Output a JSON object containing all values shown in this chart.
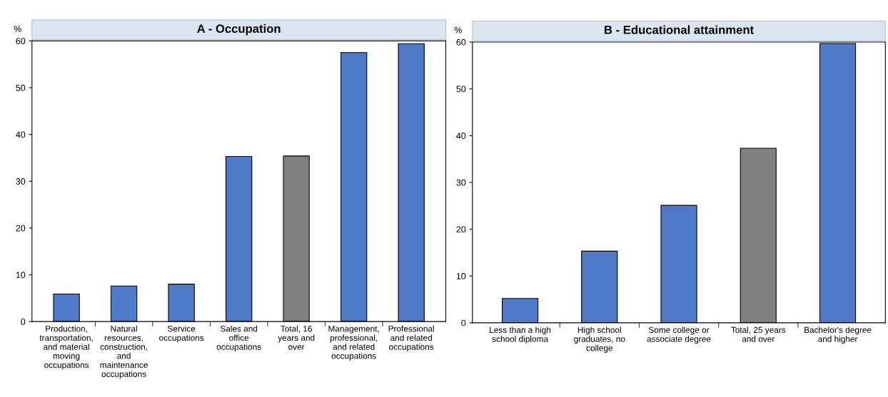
{
  "chart_data": [
    {
      "type": "bar",
      "title": "A - Occupation",
      "ylabel": "%",
      "categories": [
        "Production,\ntransportation,\nand material\nmoving\noccupations",
        "Natural\nresources,\nconstruction,\nand\nmaintenance\noccupations",
        "Service\noccupations",
        "Sales and\noffice\noccupations",
        "Total, 16\nyears and\nover",
        "Management,\nprofessional,\nand related\noccupations",
        "Professional\nand related\noccupations"
      ],
      "values": [
        5.9,
        7.6,
        8.0,
        35.3,
        35.4,
        57.5,
        59.4
      ],
      "colors": [
        "#4f7ac7",
        "#4f7ac7",
        "#4f7ac7",
        "#4f7ac7",
        "#808080",
        "#4f7ac7",
        "#4f7ac7"
      ],
      "ylim": [
        0,
        60
      ],
      "yticks": [
        0,
        10,
        20,
        30,
        40,
        50,
        60
      ],
      "grid": false,
      "legend": false
    },
    {
      "type": "bar",
      "title": "B - Educational attainment",
      "ylabel": "%",
      "categories": [
        "Less than a high\nschool diploma",
        "High school\ngraduates, no\ncollege",
        "Some college or\nassociate degree",
        "Total, 25 years\nand over",
        "Bachelor's degree\nand higher"
      ],
      "values": [
        5.2,
        15.3,
        25.1,
        37.3,
        59.7
      ],
      "colors": [
        "#4f7ac7",
        "#4f7ac7",
        "#4f7ac7",
        "#808080",
        "#4f7ac7"
      ],
      "ylim": [
        0,
        60
      ],
      "yticks": [
        0,
        10,
        20,
        30,
        40,
        50,
        60
      ],
      "grid": false,
      "legend": false
    }
  ]
}
